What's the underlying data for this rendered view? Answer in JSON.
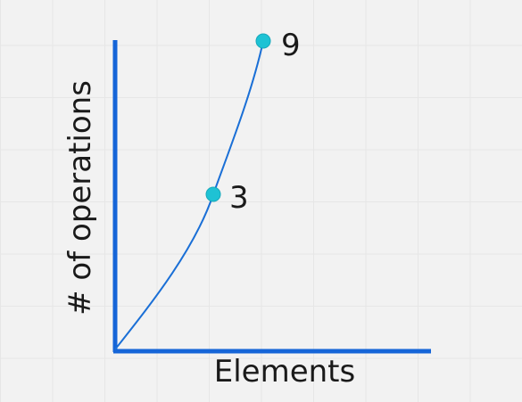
{
  "diagram": {
    "y_axis_label": "# of operations",
    "x_axis_label": "Elements",
    "points": [
      {
        "label": "3"
      },
      {
        "label": "9"
      }
    ],
    "colors": {
      "axis": "#1565d8",
      "curve": "#1a6fd6",
      "point": "#1ec2d4",
      "text": "#1a1a1a",
      "background": "#f2f2f2"
    }
  }
}
